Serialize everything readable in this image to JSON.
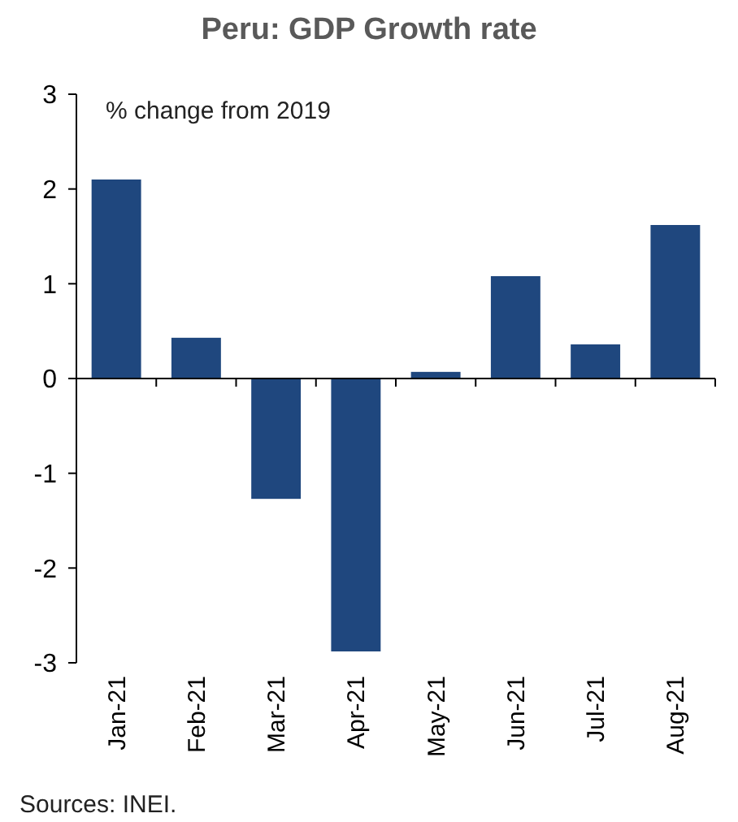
{
  "chart_data": {
    "type": "bar",
    "title": "Peru: GDP Growth rate",
    "subtitle": "% change from 2019",
    "categories": [
      "Jan-21",
      "Feb-21",
      "Mar-21",
      "Apr-21",
      "May-21",
      "Jun-21",
      "Jul-21",
      "Aug-21"
    ],
    "values": [
      2.1,
      0.43,
      -1.27,
      -2.88,
      0.07,
      1.08,
      0.36,
      1.62
    ],
    "color": "#1f477e",
    "ylim": [
      -3,
      3
    ],
    "yticks": [
      -3,
      -2,
      -1,
      0,
      1,
      2,
      3
    ],
    "annotations": [
      "Sources: INEI."
    ]
  }
}
